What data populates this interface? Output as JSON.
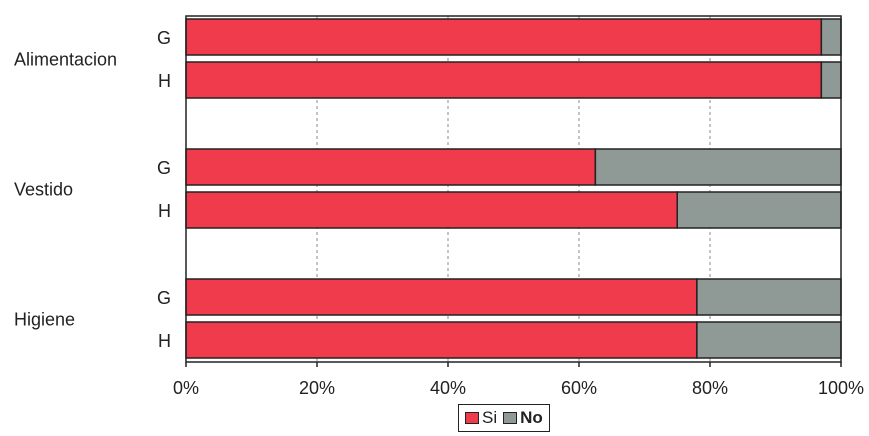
{
  "chart_data": {
    "type": "bar",
    "orientation": "horizontal",
    "stacked": "percent",
    "groups": [
      {
        "label": "Alimentacion",
        "bars": [
          {
            "label": "G",
            "si": 97,
            "no": 3
          },
          {
            "label": "H",
            "si": 97,
            "no": 3
          }
        ]
      },
      {
        "label": "Vestido",
        "bars": [
          {
            "label": "G",
            "si": 62.5,
            "no": 37.5
          },
          {
            "label": "H",
            "si": 75,
            "no": 25
          }
        ]
      },
      {
        "label": "Higiene",
        "bars": [
          {
            "label": "G",
            "si": 78,
            "no": 22
          },
          {
            "label": "H",
            "si": 78,
            "no": 22
          }
        ]
      }
    ],
    "series": [
      {
        "key": "si",
        "name": "Si",
        "color": "#ef3b4b"
      },
      {
        "key": "no",
        "name": "No",
        "color": "#8f9a96"
      }
    ],
    "x_ticks": [
      "0%",
      "20%",
      "40%",
      "60%",
      "80%",
      "100%"
    ],
    "xlim": [
      0,
      100
    ],
    "grid": "vertical dashed",
    "legend_position": "bottom"
  }
}
